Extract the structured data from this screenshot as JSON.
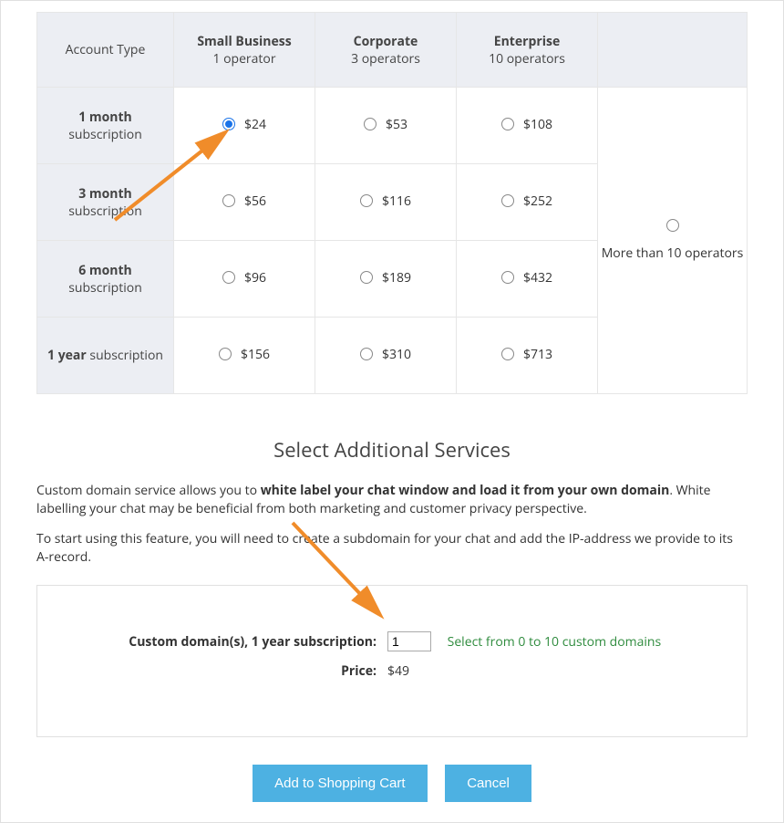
{
  "table": {
    "corner": "Account Type",
    "cols": [
      {
        "title": "Small Business",
        "sub": "1 operator"
      },
      {
        "title": "Corporate",
        "sub": "3 operators"
      },
      {
        "title": "Enterprise",
        "sub": "10 operators"
      }
    ],
    "more_label": "More than 10 operators",
    "rows": [
      {
        "title": "1 month",
        "sub": "subscription",
        "prices": [
          "$24",
          "$53",
          "$108"
        ]
      },
      {
        "title": "3 month",
        "sub": "subscription",
        "prices": [
          "$56",
          "$116",
          "$252"
        ]
      },
      {
        "title": "6 month",
        "sub": "subscription",
        "prices": [
          "$96",
          "$189",
          "$432"
        ]
      },
      {
        "title": "1 year",
        "sub": "subscription",
        "prices": [
          "$156",
          "$310",
          "$713"
        ]
      }
    ],
    "selected_row": 0,
    "selected_col": 0
  },
  "services": {
    "heading": "Select Additional Services",
    "para1_pre": "Custom domain service allows you to ",
    "para1_bold": "white label your chat window and load it from your own domain",
    "para1_post": ". White labelling your chat may be beneficial from both marketing and customer privacy perspective.",
    "para2": "To start using this feature, you will need to create a subdomain for your chat and add the IP-address we provide to its A-record.",
    "domain_label": "Custom domain(s), 1 year subscription:",
    "domain_value": "1",
    "domain_hint": "Select from 0 to 10 custom domains",
    "price_label": "Price:",
    "price_value": "$49"
  },
  "buttons": {
    "add": "Add to Shopping Cart",
    "cancel": "Cancel"
  },
  "colors": {
    "header_bg": "#eceef3",
    "border": "#e6e6e6",
    "btn_bg": "#4db1e2",
    "hint": "#2e8b3d",
    "arrow": "#f08c2a"
  }
}
